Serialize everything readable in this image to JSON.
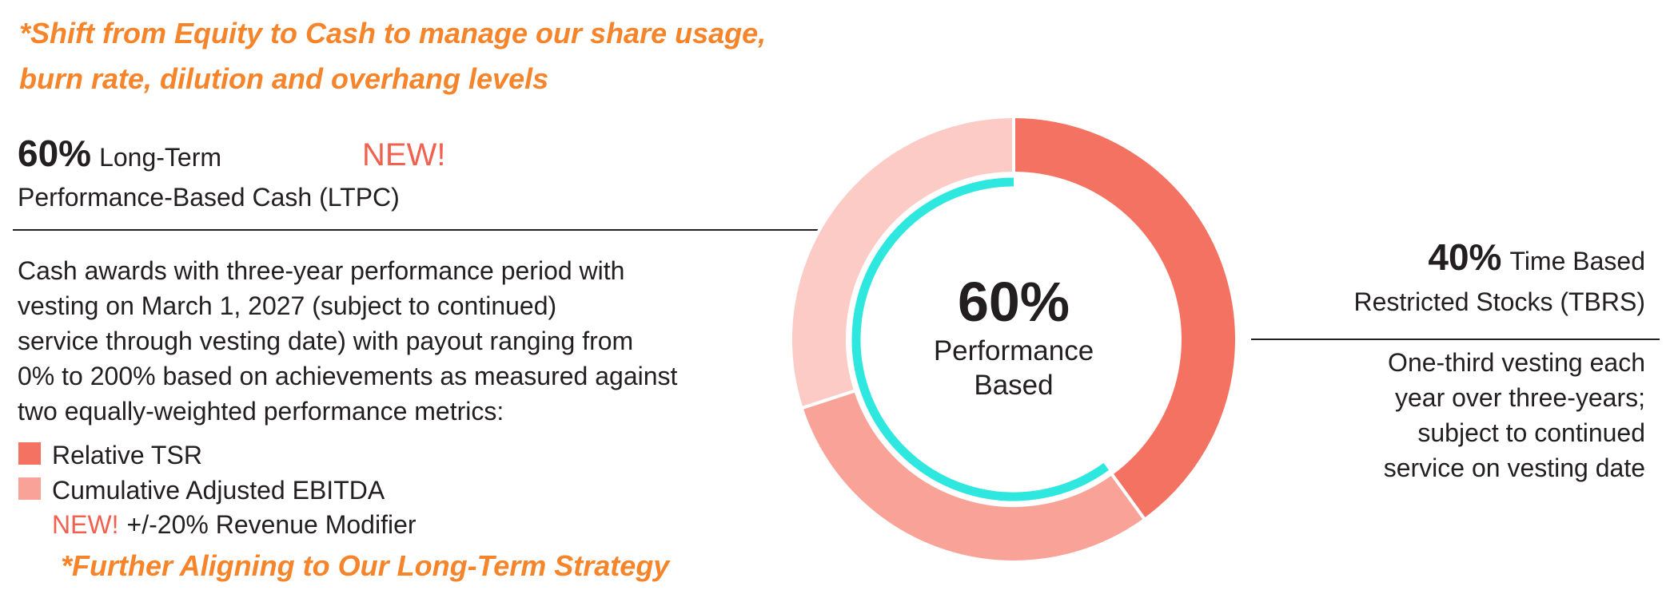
{
  "headline": [
    "*Shift from Equity to Cash to manage our share usage,",
    "burn rate, dilution and overhang levels"
  ],
  "ltpc": {
    "percent": "60%",
    "title_line1": "Long-Term",
    "badge": "NEW!",
    "title_line2": "Performance-Based Cash (LTPC)",
    "description": [
      "Cash awards with three-year performance period with",
      "vesting on March 1, 2027 (subject to continued)",
      "service through vesting date) with payout ranging from",
      "0% to 200% based on achievements as measured against",
      "two equally-weighted performance metrics:"
    ],
    "metrics": [
      {
        "label": "Relative TSR",
        "color": "#f47262"
      },
      {
        "label": "Cumulative Adjusted EBITDA",
        "color": "#f9a398"
      }
    ],
    "modifier_badge": "NEW!",
    "modifier": "+/-20% Revenue Modifier"
  },
  "tbrs": {
    "percent": "40%",
    "title_line1": "Time Based",
    "title_line2": "Restricted Stocks (TBRS)",
    "description": [
      "One-third vesting each",
      "year over three-years;",
      "subject to continued",
      "service on vesting date"
    ]
  },
  "footer": "*Further Aligning to Our Long-Term Strategy",
  "chart_data": {
    "type": "donut",
    "center_value": "60%",
    "center_label": [
      "Performance",
      "Based"
    ],
    "values": [
      40,
      30,
      30
    ],
    "colors": [
      "#f47262",
      "#f9a398",
      "#fccbc6"
    ],
    "highlight": {
      "value": 60,
      "color": "#2ee8e0"
    }
  }
}
